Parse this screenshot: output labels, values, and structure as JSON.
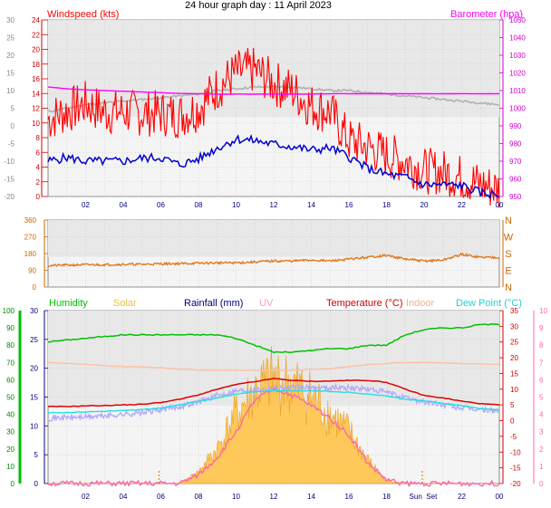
{
  "title": "24 hour graph day : 11 April 2023",
  "colors": {
    "wind_avg": "#0000cc",
    "wind_gust": "#ff0000",
    "barometer": "#ff00ff",
    "pressure_alt": "#b0b0b0",
    "direction": "#e07a20",
    "humidity": "#00c000",
    "solar": "#ffc040",
    "rainfall": "#000080",
    "uv": "#ff66aa",
    "temperature": "#e00000",
    "indoor": "#ffbfa0",
    "dewpoint": "#20e0e0",
    "apparent": "#b0a8ff",
    "plot_bg": "#e8e8e8",
    "plot_bg2": "#f4f4f4",
    "grid": "#c8c8c8"
  },
  "x_axis": {
    "hour_ticks": [
      "02",
      "04",
      "06",
      "08",
      "10",
      "12",
      "14",
      "16",
      "18",
      "20",
      "22",
      "00"
    ],
    "bottom_ticks": [
      "02",
      "04",
      "06",
      "08",
      "10",
      "12",
      "14",
      "16",
      "18",
      "Sun",
      "Set",
      "22",
      "00"
    ]
  },
  "chart_data": [
    {
      "type": "line",
      "panel": "wind",
      "legend": {
        "left": "Windspeed (kts)",
        "right": "Barometer (hpa)"
      },
      "y_axes": {
        "outer_left": {
          "ticks": [
            30,
            25,
            20,
            15,
            10,
            5,
            0,
            -5,
            -10,
            -15,
            -20
          ]
        },
        "left": {
          "label": "kts",
          "ylim": [
            0,
            24
          ],
          "ticks": [
            24,
            22,
            20,
            18,
            16,
            14,
            12,
            10,
            8,
            6,
            4,
            2,
            0
          ]
        },
        "right": {
          "label": "hpa",
          "ylim": [
            950,
            1050
          ],
          "ticks": [
            1050,
            1040,
            1030,
            1020,
            1010,
            1000,
            990,
            980,
            970,
            960,
            950
          ]
        }
      },
      "x_hours": [
        0,
        1,
        2,
        3,
        4,
        5,
        6,
        7,
        8,
        9,
        10,
        11,
        12,
        13,
        14,
        15,
        16,
        17,
        18,
        19,
        20,
        21,
        22,
        23,
        24
      ],
      "series": [
        {
          "name": "Windspeed",
          "values": [
            4.8,
            5.3,
            4.8,
            4.8,
            4.8,
            5.2,
            5.3,
            4.3,
            5.1,
            6.6,
            7.8,
            7.6,
            7.1,
            6.8,
            6.3,
            6.6,
            5.4,
            3.8,
            3.0,
            2.6,
            1.6,
            1.6,
            1.5,
            0.5,
            0.2
          ]
        },
        {
          "name": "Gust",
          "values": [
            10.5,
            11.6,
            12.6,
            11.5,
            11.5,
            11.3,
            11.3,
            11.0,
            12.0,
            14.8,
            16.8,
            17.2,
            15.4,
            14.4,
            12.3,
            11.5,
            7.6,
            6.7,
            5.6,
            4.8,
            3.5,
            3.3,
            2.6,
            1.6,
            1.0
          ]
        },
        {
          "name": "Barometer",
          "values": [
            1012,
            1011,
            1010.4,
            1010,
            1009.6,
            1009.2,
            1008.8,
            1008.4,
            1008.2,
            1008,
            1008,
            1008,
            1008,
            1008,
            1008,
            1008.2,
            1008.2,
            1008.2,
            1008.2,
            1008.2,
            1008.2,
            1008.2,
            1008.2,
            1008.2,
            1008.2
          ]
        },
        {
          "name": "Pressure trend",
          "values": [
            998,
            1000,
            1002,
            1003,
            1004,
            1005,
            1006,
            1007,
            1008,
            1010,
            1011,
            1012,
            1012,
            1012,
            1011,
            1010,
            1010,
            1009,
            1008,
            1007,
            1006,
            1005,
            1004,
            1003,
            1002
          ]
        }
      ]
    },
    {
      "type": "line",
      "panel": "direction",
      "y_axes": {
        "left": {
          "ticks": [
            360,
            270,
            180,
            90,
            0
          ],
          "ylim": [
            0,
            360
          ]
        },
        "right": {
          "labels": [
            "N",
            "W",
            "S",
            "E",
            "N"
          ]
        }
      },
      "x_hours": [
        0,
        1,
        2,
        3,
        4,
        5,
        6,
        7,
        8,
        9,
        10,
        11,
        12,
        13,
        14,
        15,
        16,
        17,
        18,
        19,
        20,
        21,
        22,
        23,
        24
      ],
      "series": [
        {
          "name": "Direction",
          "values": [
            115,
            118,
            120,
            120,
            122,
            122,
            125,
            126,
            128,
            130,
            130,
            135,
            140,
            140,
            145,
            140,
            150,
            160,
            170,
            150,
            140,
            145,
            175,
            160,
            160
          ]
        }
      ]
    },
    {
      "type": "line",
      "panel": "climate",
      "legend": [
        "Humidity",
        "Solar",
        "Rainfall (mm)",
        "UV",
        "Temperature (°C)",
        "Indoor",
        "Dew Point (°C)"
      ],
      "y_axes": {
        "outer_left": {
          "ticks": [
            100,
            90,
            80,
            70,
            60,
            50,
            40,
            30,
            20,
            10,
            0
          ]
        },
        "left": {
          "ticks": [
            30,
            25,
            20,
            15,
            10,
            5,
            0
          ]
        },
        "right": {
          "ticks": [
            35,
            30,
            25,
            20,
            15,
            10,
            5,
            0,
            -5,
            -10,
            -15,
            -20
          ]
        },
        "outer_right": {
          "ticks": [
            10,
            9,
            8,
            7,
            6,
            5,
            4,
            3,
            2,
            1,
            0
          ]
        }
      },
      "x_hours": [
        0,
        1,
        2,
        3,
        4,
        5,
        6,
        7,
        8,
        9,
        10,
        11,
        12,
        13,
        14,
        15,
        16,
        17,
        18,
        19,
        20,
        21,
        22,
        23,
        24
      ],
      "series": [
        {
          "name": "Humidity",
          "values": [
            82,
            83,
            84,
            85,
            86,
            86,
            86,
            86,
            86,
            86,
            84,
            80,
            76,
            76,
            77,
            78,
            78,
            80,
            80,
            86,
            89,
            90,
            90,
            92,
            92
          ]
        },
        {
          "name": "Solar",
          "values": [
            0,
            0,
            0,
            0,
            0,
            0,
            0,
            0,
            2,
            6,
            12,
            16,
            18,
            17,
            15,
            12,
            9,
            4,
            0.5,
            0,
            0,
            0,
            0,
            0,
            0
          ]
        },
        {
          "name": "UV",
          "values": [
            0,
            0,
            0,
            0,
            0,
            0,
            0,
            0,
            0.5,
            1.5,
            3,
            4.8,
            5.5,
            5.1,
            4.5,
            3.8,
            2.8,
            1.2,
            0.2,
            0,
            0,
            0,
            0,
            0,
            0
          ]
        },
        {
          "name": "Temperature",
          "values": [
            4.5,
            4.5,
            4.7,
            4.8,
            5,
            5.2,
            5.8,
            6.8,
            8.2,
            10,
            11.5,
            12.4,
            13.4,
            12.8,
            12.5,
            12.6,
            12.8,
            12.8,
            12.2,
            10,
            8,
            7.2,
            6.2,
            5.4,
            5
          ]
        },
        {
          "name": "Indoor",
          "values": [
            18.5,
            18.2,
            17.9,
            17.5,
            17.2,
            17.1,
            16.8,
            16.4,
            16.1,
            16,
            16,
            16,
            16,
            16,
            16.2,
            16.5,
            17.2,
            17.8,
            18.2,
            18.5,
            18.5,
            18.4,
            18.2,
            18,
            17.9
          ]
        },
        {
          "name": "Dew Point",
          "values": [
            2.5,
            2.6,
            2.8,
            3,
            3.2,
            3.5,
            4,
            5,
            6.2,
            7.2,
            8.5,
            9.2,
            9.5,
            9.5,
            9.5,
            9.3,
            9,
            8.4,
            7.9,
            6.8,
            6.3,
            5.5,
            4.8,
            3.8,
            3.5
          ]
        },
        {
          "name": "Apparent",
          "values": [
            0.8,
            1,
            1.2,
            1.5,
            2,
            2.5,
            3.5,
            4.5,
            6,
            8,
            9.5,
            10,
            10.5,
            10.5,
            10.5,
            10.5,
            10.5,
            10,
            9,
            7.2,
            6,
            5,
            4,
            3.5,
            3
          ]
        }
      ]
    }
  ]
}
